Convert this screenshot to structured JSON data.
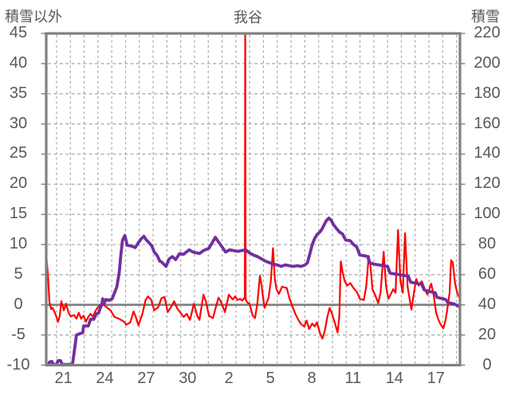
{
  "title": "我谷",
  "header": {
    "left_axis_title": "積雪以外",
    "chart_title": "我谷",
    "right_axis_title": "積雪"
  },
  "colors": {
    "red_series": "#ff0000",
    "purple_series": "#7030a0",
    "axis_frame": "#808080",
    "zero_line": "#808080",
    "gridline": "#a6a6a6",
    "text": "#595959",
    "background": "#ffffff"
  },
  "chart_data": {
    "type": "line",
    "title": "我谷",
    "legend": "none",
    "grid": {
      "h_lines_at": [
        40,
        35,
        30,
        25,
        20,
        15,
        10,
        5,
        -5
      ],
      "zero_line_at": 0
    },
    "left_axis": {
      "title": "積雪以外",
      "min": -10,
      "max": 45,
      "tick_step": 5,
      "ticks": [
        45,
        40,
        35,
        30,
        25,
        20,
        15,
        10,
        5,
        0,
        -5,
        -10
      ]
    },
    "right_axis": {
      "title": "積雪",
      "min": 0,
      "max": 220,
      "tick_step": 20,
      "ticks": [
        220,
        200,
        180,
        160,
        140,
        120,
        100,
        80,
        60,
        40,
        20,
        0
      ]
    },
    "x_axis": {
      "domain_days": [
        0,
        30
      ],
      "first_gridline_day": 0.75,
      "gridline_count": 30,
      "tick_labels": [
        {
          "label": "21",
          "day": 1.25
        },
        {
          "label": "24",
          "day": 4.25
        },
        {
          "label": "27",
          "day": 7.25
        },
        {
          "label": "30",
          "day": 10.25
        },
        {
          "label": "2",
          "day": 13.25
        },
        {
          "label": "5",
          "day": 16.25
        },
        {
          "label": "8",
          "day": 19.25
        },
        {
          "label": "11",
          "day": 22.25
        },
        {
          "label": "14",
          "day": 25.25
        },
        {
          "label": "17",
          "day": 28.25
        }
      ]
    },
    "series": [
      {
        "id": "red-line",
        "axis": "left",
        "color": "#ff0000",
        "stroke_width": 2.2,
        "points": [
          [
            0.03,
            7.5
          ],
          [
            0.12,
            5.0
          ],
          [
            0.23,
            0.5
          ],
          [
            0.35,
            -0.7
          ],
          [
            0.46,
            -0.5
          ],
          [
            0.63,
            -1.3
          ],
          [
            0.86,
            -2.8
          ],
          [
            0.98,
            -1.8
          ],
          [
            1.09,
            0.6
          ],
          [
            1.27,
            -0.9
          ],
          [
            1.44,
            0.2
          ],
          [
            1.61,
            -1.3
          ],
          [
            1.78,
            -1.9
          ],
          [
            2.02,
            -1.7
          ],
          [
            2.19,
            -2.3
          ],
          [
            2.36,
            -1.3
          ],
          [
            2.53,
            -2.3
          ],
          [
            2.71,
            -1.8
          ],
          [
            2.88,
            -2.8
          ],
          [
            3.05,
            -2.0
          ],
          [
            3.22,
            -1.5
          ],
          [
            3.4,
            -2.0
          ],
          [
            3.57,
            -1.0
          ],
          [
            3.74,
            -0.4
          ],
          [
            4.03,
            0.2
          ],
          [
            4.26,
            -0.2
          ],
          [
            4.66,
            -0.9
          ],
          [
            4.95,
            -2.0
          ],
          [
            5.35,
            -2.4
          ],
          [
            5.64,
            -2.8
          ],
          [
            5.81,
            -3.3
          ],
          [
            6.1,
            -2.9
          ],
          [
            6.33,
            -1.1
          ],
          [
            6.51,
            -2.1
          ],
          [
            6.68,
            -3.4
          ],
          [
            6.97,
            -1.5
          ],
          [
            7.2,
            0.8
          ],
          [
            7.37,
            1.4
          ],
          [
            7.6,
            0.9
          ],
          [
            7.83,
            -0.9
          ],
          [
            8.12,
            -0.4
          ],
          [
            8.35,
            1.1
          ],
          [
            8.58,
            1.3
          ],
          [
            8.81,
            -1.2
          ],
          [
            9.04,
            -0.4
          ],
          [
            9.27,
            0.6
          ],
          [
            9.5,
            -0.6
          ],
          [
            9.73,
            -1.3
          ],
          [
            9.96,
            -2.0
          ],
          [
            10.19,
            -1.5
          ],
          [
            10.42,
            -2.5
          ],
          [
            10.71,
            0.2
          ],
          [
            10.94,
            -1.8
          ],
          [
            11.11,
            -2.5
          ],
          [
            11.4,
            1.7
          ],
          [
            11.57,
            0.6
          ],
          [
            11.8,
            -1.8
          ],
          [
            12.09,
            -2.2
          ],
          [
            12.26,
            -0.7
          ],
          [
            12.49,
            1.2
          ],
          [
            12.67,
            0.5
          ],
          [
            12.96,
            -1.2
          ],
          [
            13.24,
            1.7
          ],
          [
            13.41,
            1.2
          ],
          [
            13.53,
            0.9
          ],
          [
            13.7,
            1.4
          ],
          [
            13.88,
            0.8
          ],
          [
            14.05,
            1.0
          ],
          [
            14.22,
            0.7
          ],
          [
            14.34,
            1.1
          ],
          [
            14.4,
            1.0
          ],
          [
            14.43,
            45.8
          ],
          [
            14.46,
            0.9
          ],
          [
            14.57,
            0.4
          ],
          [
            14.74,
            0.2
          ],
          [
            14.97,
            -1.8
          ],
          [
            15.14,
            -2.2
          ],
          [
            15.32,
            0.4
          ],
          [
            15.49,
            4.8
          ],
          [
            15.6,
            3.5
          ],
          [
            15.72,
            1.2
          ],
          [
            15.83,
            -0.5
          ],
          [
            16.01,
            0.5
          ],
          [
            16.12,
            1.2
          ],
          [
            16.29,
            4.0
          ],
          [
            16.44,
            9.4
          ],
          [
            16.58,
            4.2
          ],
          [
            16.7,
            2.6
          ],
          [
            16.87,
            1.8
          ],
          [
            17.1,
            3.0
          ],
          [
            17.27,
            2.9
          ],
          [
            17.44,
            2.8
          ],
          [
            17.62,
            1.2
          ],
          [
            17.91,
            -0.6
          ],
          [
            18.08,
            -1.6
          ],
          [
            18.31,
            -2.6
          ],
          [
            18.48,
            -3.2
          ],
          [
            18.71,
            -3.6
          ],
          [
            18.88,
            -2.6
          ],
          [
            19.06,
            -4.0
          ],
          [
            19.29,
            -3.1
          ],
          [
            19.46,
            -3.6
          ],
          [
            19.63,
            -2.9
          ],
          [
            19.86,
            -4.8
          ],
          [
            20.03,
            -5.6
          ],
          [
            20.21,
            -4.2
          ],
          [
            20.38,
            -2.0
          ],
          [
            20.55,
            -0.5
          ],
          [
            20.72,
            -1.5
          ],
          [
            20.9,
            -2.8
          ],
          [
            21.13,
            -4.6
          ],
          [
            21.25,
            -2.0
          ],
          [
            21.36,
            7.2
          ],
          [
            21.48,
            5.5
          ],
          [
            21.65,
            3.9
          ],
          [
            21.82,
            3.2
          ],
          [
            22.05,
            3.6
          ],
          [
            22.28,
            2.8
          ],
          [
            22.51,
            2.2
          ],
          [
            22.74,
            1.0
          ],
          [
            23.03,
            0.8
          ],
          [
            23.2,
            3.0
          ],
          [
            23.38,
            8.1
          ],
          [
            23.49,
            7.0
          ],
          [
            23.66,
            2.5
          ],
          [
            23.84,
            1.7
          ],
          [
            24.07,
            0.3
          ],
          [
            24.24,
            2.0
          ],
          [
            24.47,
            8.8
          ],
          [
            24.64,
            3.0
          ],
          [
            24.81,
            1.0
          ],
          [
            24.99,
            1.8
          ],
          [
            25.16,
            2.6
          ],
          [
            25.33,
            2.0
          ],
          [
            25.51,
            12.4
          ],
          [
            25.68,
            4.0
          ],
          [
            25.85,
            2.0
          ],
          [
            26.02,
            11.9
          ],
          [
            26.2,
            3.0
          ],
          [
            26.31,
            1.5
          ],
          [
            26.48,
            -0.8
          ],
          [
            26.66,
            2.0
          ],
          [
            26.83,
            4.3
          ],
          [
            27.0,
            3.2
          ],
          [
            27.23,
            3.9
          ],
          [
            27.46,
            2.5
          ],
          [
            27.64,
            1.7
          ],
          [
            27.92,
            3.5
          ],
          [
            28.1,
            1.5
          ],
          [
            28.27,
            -1.3
          ],
          [
            28.44,
            -2.5
          ],
          [
            28.61,
            -3.3
          ],
          [
            28.79,
            -3.9
          ],
          [
            28.96,
            -2.5
          ],
          [
            29.07,
            -0.9
          ],
          [
            29.25,
            2.0
          ],
          [
            29.36,
            7.4
          ],
          [
            29.48,
            7.0
          ],
          [
            29.65,
            3.5
          ],
          [
            29.82,
            1.8
          ],
          [
            30.0,
            1.0
          ]
        ]
      },
      {
        "id": "purple-line",
        "axis": "right",
        "color": "#7030a0",
        "stroke_width": 3.8,
        "points": [
          [
            0.0,
            0
          ],
          [
            0.17,
            0
          ],
          [
            0.23,
            2
          ],
          [
            0.4,
            2.5
          ],
          [
            0.52,
            0.5
          ],
          [
            0.75,
            0.5
          ],
          [
            0.86,
            3
          ],
          [
            1.04,
            3
          ],
          [
            1.15,
            0.5
          ],
          [
            1.9,
            0.5
          ],
          [
            2.02,
            8
          ],
          [
            2.19,
            20
          ],
          [
            2.48,
            21
          ],
          [
            2.65,
            21.5
          ],
          [
            2.71,
            26
          ],
          [
            3.05,
            26
          ],
          [
            3.22,
            30.5
          ],
          [
            3.45,
            30.5
          ],
          [
            3.63,
            34
          ],
          [
            3.8,
            34.5
          ],
          [
            3.92,
            38
          ],
          [
            4.03,
            40
          ],
          [
            4.09,
            44
          ],
          [
            4.2,
            41
          ],
          [
            4.32,
            43.5
          ],
          [
            4.55,
            43
          ],
          [
            4.78,
            44
          ],
          [
            5.12,
            52
          ],
          [
            5.3,
            62
          ],
          [
            5.41,
            73
          ],
          [
            5.53,
            83
          ],
          [
            5.7,
            86
          ],
          [
            5.87,
            79.5
          ],
          [
            6.16,
            79
          ],
          [
            6.45,
            78
          ],
          [
            6.74,
            82
          ],
          [
            6.91,
            84
          ],
          [
            7.08,
            85.5
          ],
          [
            7.26,
            83
          ],
          [
            7.43,
            81.5
          ],
          [
            7.66,
            79
          ],
          [
            7.83,
            75
          ],
          [
            8.06,
            72.5
          ],
          [
            8.23,
            69
          ],
          [
            8.35,
            68.5
          ],
          [
            8.69,
            65.5
          ],
          [
            8.92,
            70.5
          ],
          [
            9.15,
            72
          ],
          [
            9.38,
            70
          ],
          [
            9.67,
            74
          ],
          [
            9.96,
            73.5
          ],
          [
            10.36,
            76.5
          ],
          [
            10.65,
            75
          ],
          [
            11.11,
            74
          ],
          [
            11.4,
            76
          ],
          [
            11.8,
            77.5
          ],
          [
            12.26,
            84.8
          ],
          [
            12.55,
            81
          ],
          [
            13.01,
            75
          ],
          [
            13.3,
            76.5
          ],
          [
            13.59,
            76
          ],
          [
            13.88,
            75.5
          ],
          [
            14.16,
            76
          ],
          [
            14.45,
            76.5
          ],
          [
            14.74,
            74.5
          ],
          [
            15.03,
            73
          ],
          [
            15.32,
            72
          ],
          [
            15.6,
            70.5
          ],
          [
            15.89,
            69
          ],
          [
            16.18,
            68
          ],
          [
            16.47,
            67
          ],
          [
            16.76,
            66.5
          ],
          [
            17.04,
            65.5
          ],
          [
            17.33,
            66.5
          ],
          [
            17.62,
            66
          ],
          [
            17.91,
            65.5
          ],
          [
            18.19,
            66
          ],
          [
            18.48,
            65.5
          ],
          [
            18.77,
            66.5
          ],
          [
            18.94,
            68
          ],
          [
            19.12,
            74
          ],
          [
            19.29,
            80
          ],
          [
            19.46,
            84
          ],
          [
            19.63,
            86.5
          ],
          [
            19.81,
            88
          ],
          [
            19.98,
            90
          ],
          [
            20.15,
            93
          ],
          [
            20.32,
            96
          ],
          [
            20.5,
            97.5
          ],
          [
            20.67,
            96
          ],
          [
            20.84,
            93
          ],
          [
            21.01,
            91
          ],
          [
            21.24,
            88.5
          ],
          [
            21.48,
            87
          ],
          [
            21.71,
            83
          ],
          [
            22.05,
            82.5
          ],
          [
            22.28,
            80
          ],
          [
            22.51,
            78.5
          ],
          [
            22.74,
            73
          ],
          [
            23.09,
            72.5
          ],
          [
            23.32,
            72
          ],
          [
            23.43,
            68
          ],
          [
            23.78,
            67
          ],
          [
            24.12,
            66.5
          ],
          [
            24.47,
            66
          ],
          [
            24.76,
            65.5
          ],
          [
            24.93,
            61
          ],
          [
            25.28,
            60.5
          ],
          [
            25.62,
            60
          ],
          [
            25.97,
            59.5
          ],
          [
            26.25,
            59
          ],
          [
            26.43,
            55
          ],
          [
            26.71,
            54.5
          ],
          [
            27.0,
            54
          ],
          [
            27.23,
            53.5
          ],
          [
            27.4,
            50
          ],
          [
            27.69,
            49
          ],
          [
            27.98,
            48.5
          ],
          [
            28.21,
            48
          ],
          [
            28.33,
            45
          ],
          [
            28.56,
            44.5
          ],
          [
            28.79,
            44
          ],
          [
            28.96,
            43.5
          ],
          [
            29.13,
            41.5
          ],
          [
            29.36,
            41
          ],
          [
            29.59,
            40.5
          ],
          [
            29.82,
            39.5
          ],
          [
            30.0,
            38.5
          ]
        ]
      }
    ]
  }
}
